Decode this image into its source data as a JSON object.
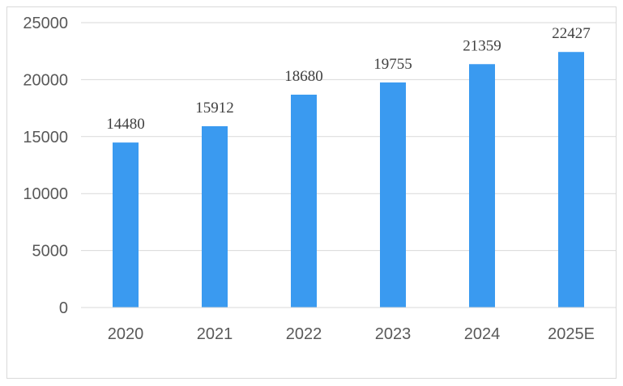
{
  "chart_data": {
    "type": "bar",
    "title": "",
    "xlabel": "",
    "ylabel": "",
    "categories": [
      "2020",
      "2021",
      "2022",
      "2023",
      "2024",
      "2025E"
    ],
    "values": [
      14480,
      15912,
      18680,
      19755,
      21359,
      22427
    ],
    "data_labels": [
      "14480",
      "15912",
      "18680",
      "19755",
      "21359",
      "22427"
    ],
    "ylim": [
      0,
      25000
    ],
    "yticks": [
      0,
      5000,
      10000,
      15000,
      20000,
      25000
    ],
    "ytick_labels": [
      "0",
      "5000",
      "10000",
      "15000",
      "20000",
      "25000"
    ],
    "grid": true,
    "legend": "none",
    "colors": {
      "bar": "#3a9af0",
      "grid": "#d9d9d9",
      "axis": "#d9d9d9",
      "tick_text": "#595959",
      "label_text": "#404040"
    }
  }
}
